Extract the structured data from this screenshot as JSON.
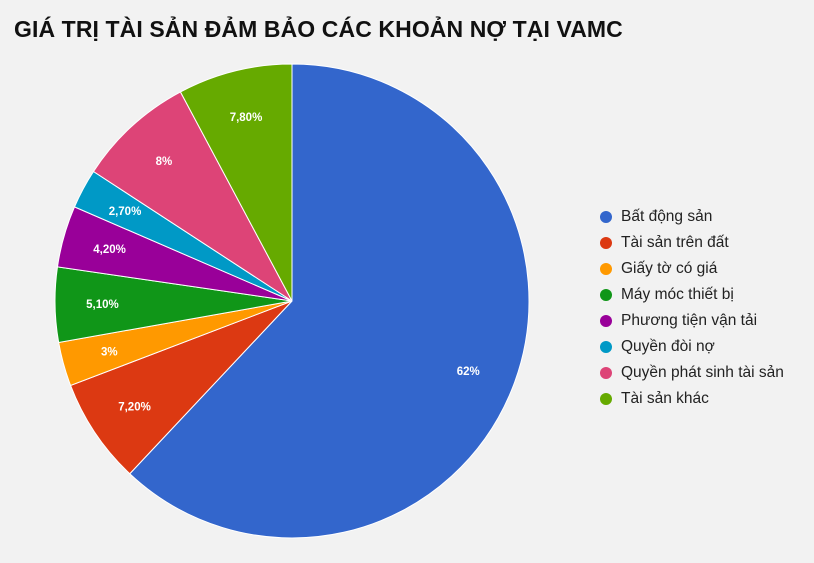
{
  "chart_data": {
    "type": "pie",
    "title": "GIÁ TRỊ TÀI SẢN ĐẢM BẢO CÁC KHOẢN NỢ TẠI VAMC",
    "legend_position": "right",
    "slices": [
      {
        "name": "Bất động sản",
        "value": 62,
        "label": "62%",
        "color": "#3366cc"
      },
      {
        "name": "Tài sản trên đất",
        "value": 7.2,
        "label": "7,20%",
        "color": "#dc3912"
      },
      {
        "name": "Giấy tờ có giá",
        "value": 3,
        "label": "3%",
        "color": "#ff9900"
      },
      {
        "name": "Máy móc thiết bị",
        "value": 5.1,
        "label": "5,10%",
        "color": "#109618"
      },
      {
        "name": "Phương tiện vận tải",
        "value": 4.2,
        "label": "4,20%",
        "color": "#990099"
      },
      {
        "name": "Quyền đòi nợ",
        "value": 2.7,
        "label": "2,70%",
        "color": "#0099c6"
      },
      {
        "name": "Quyền phát sinh tài sản",
        "value": 8,
        "label": "8%",
        "color": "#dd4477"
      },
      {
        "name": "Tài sản khác",
        "value": 7.8,
        "label": "7,80%",
        "color": "#66aa00"
      }
    ]
  }
}
